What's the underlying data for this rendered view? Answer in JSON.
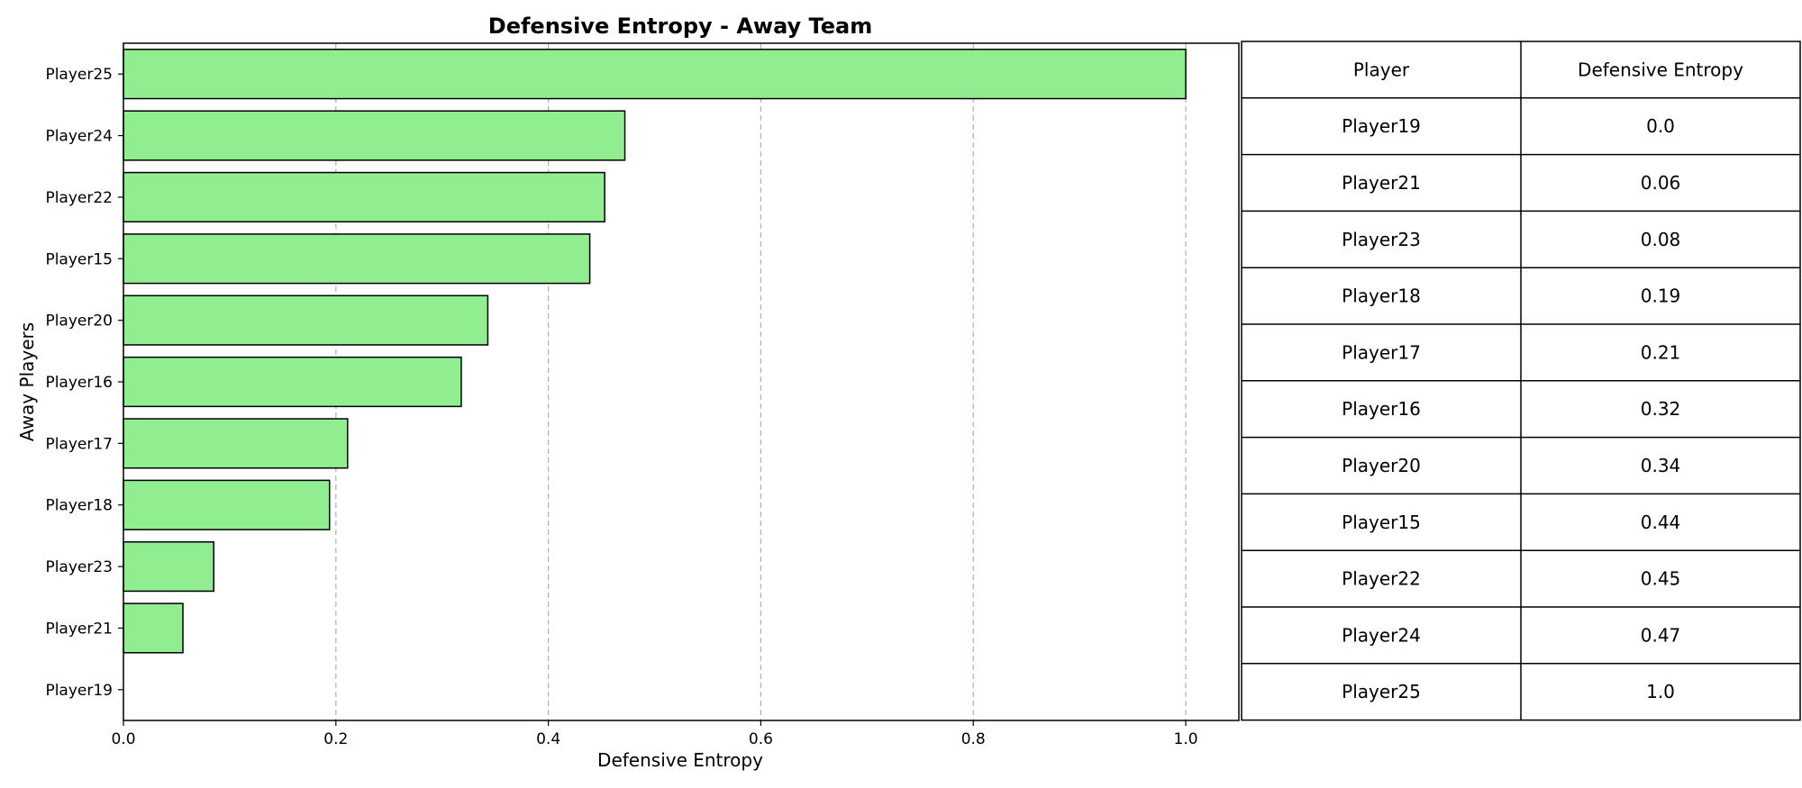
{
  "chart_data": {
    "type": "bar",
    "orientation": "horizontal",
    "title": "Defensive Entropy - Away Team",
    "xlabel": "Defensive Entropy",
    "ylabel": "Away Players",
    "categories": [
      "Player19",
      "Player21",
      "Player23",
      "Player18",
      "Player17",
      "Player16",
      "Player20",
      "Player15",
      "Player22",
      "Player24",
      "Player25"
    ],
    "values": [
      0.0,
      0.056,
      0.085,
      0.194,
      0.211,
      0.318,
      0.343,
      0.439,
      0.453,
      0.472,
      1.0
    ],
    "xlim": [
      0,
      1.05
    ],
    "xticks": [
      0.0,
      0.2,
      0.4,
      0.6,
      0.8,
      1.0
    ],
    "xtick_labels": [
      "0.0",
      "0.2",
      "0.4",
      "0.6",
      "0.8",
      "1.0"
    ],
    "grid": "x-dashed",
    "bar_color": "#90ee90",
    "edge_color": "#000000",
    "grid_color": "#b0b0b0"
  },
  "table": {
    "headers": [
      "Player",
      "Defensive Entropy"
    ],
    "rows": [
      [
        "Player19",
        "0.0"
      ],
      [
        "Player21",
        "0.06"
      ],
      [
        "Player23",
        "0.08"
      ],
      [
        "Player18",
        "0.19"
      ],
      [
        "Player17",
        "0.21"
      ],
      [
        "Player16",
        "0.32"
      ],
      [
        "Player20",
        "0.34"
      ],
      [
        "Player15",
        "0.44"
      ],
      [
        "Player22",
        "0.45"
      ],
      [
        "Player24",
        "0.47"
      ],
      [
        "Player25",
        "1.0"
      ]
    ]
  }
}
